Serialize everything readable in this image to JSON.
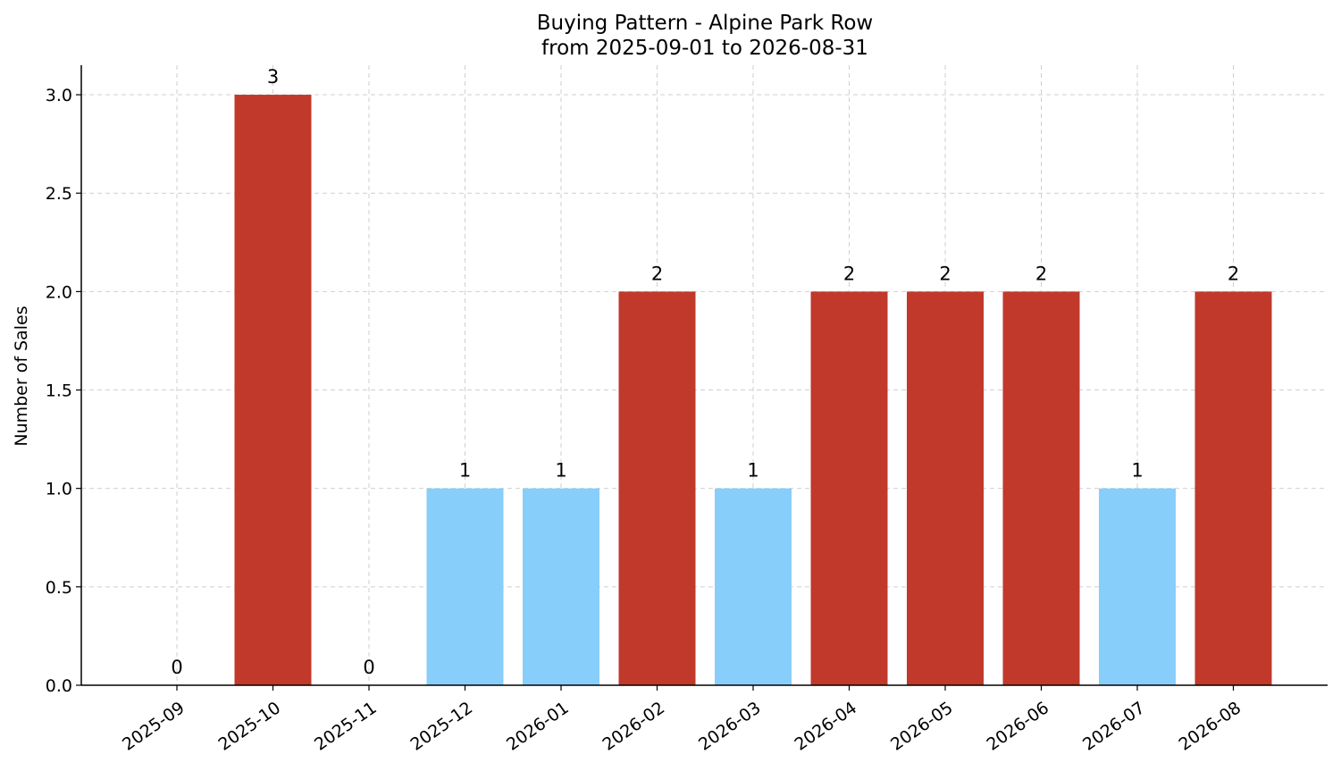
{
  "chart_data": {
    "type": "bar",
    "title": "Buying Pattern - Alpine Park Row",
    "subtitle": "from 2025-09-01 to 2026-08-31",
    "xlabel": "",
    "ylabel": "Number of Sales",
    "categories": [
      "2025-09",
      "2025-10",
      "2025-11",
      "2025-12",
      "2026-01",
      "2026-02",
      "2026-03",
      "2026-04",
      "2026-05",
      "2026-06",
      "2026-07",
      "2026-08"
    ],
    "values": [
      0,
      3,
      0,
      1,
      1,
      2,
      1,
      2,
      2,
      2,
      1,
      2
    ],
    "data_labels": [
      "0",
      "3",
      "0",
      "1",
      "1",
      "2",
      "1",
      "2",
      "2",
      "2",
      "1",
      "2"
    ],
    "ylim": [
      0,
      3.15
    ],
    "yticks": [
      0.0,
      0.5,
      1.0,
      1.5,
      2.0,
      2.5,
      3.0
    ],
    "ytick_labels": [
      "0.0",
      "0.5",
      "1.0",
      "1.5",
      "2.0",
      "2.5",
      "3.0"
    ],
    "grid": true,
    "legend": "none",
    "colors": {
      "high": "#c0392b",
      "low": "#87cefa"
    },
    "color_rule": "bars with value >= 2 use high color, value 1 uses low color"
  }
}
